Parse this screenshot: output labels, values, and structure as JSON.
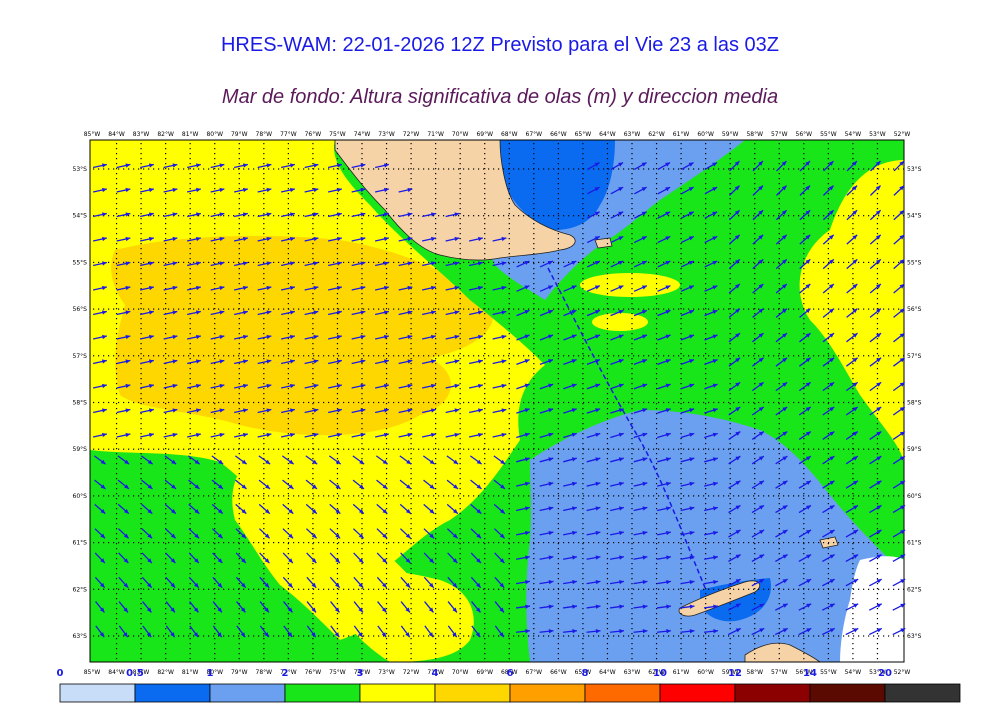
{
  "title": "HRES-WAM: 22-01-2026 12Z Previsto para el Vie 23 a las 03Z",
  "subtitle": "Mar de fondo: Altura significativa de olas (m) y direccion media",
  "map": {
    "lon_labels": [
      "85°W",
      "84°W",
      "83°W",
      "82°W",
      "81°W",
      "80°W",
      "79°W",
      "78°W",
      "77°W",
      "76°W",
      "75°W",
      "74°W",
      "73°W",
      "72°W",
      "71°W",
      "70°W",
      "69°W",
      "68°W",
      "67°W",
      "66°W",
      "65°W",
      "64°W",
      "63°W",
      "62°W",
      "61°W",
      "60°W",
      "59°W",
      "58°W",
      "57°W",
      "56°W",
      "55°W",
      "54°W",
      "53°W",
      "52°W"
    ],
    "lat_labels": [
      "53°S",
      "54°S",
      "55°S",
      "56°S",
      "57°S",
      "58°S",
      "59°S",
      "60°S",
      "61°S",
      "62°S",
      "63°S"
    ],
    "colors": {
      "land": "#f5d3a6",
      "ice_white": "#ffffff",
      "arrow": "#1a1ae6",
      "track": "#1a1ae6"
    }
  },
  "colorbar": {
    "ticks": [
      "0",
      "0.5",
      "1",
      "2",
      "3",
      "4",
      "6",
      "8",
      "10",
      "12",
      "14",
      "20"
    ],
    "colors": [
      "#c8ddf7",
      "#0a6bf0",
      "#6b9ff0",
      "#19e619",
      "#ffff00",
      "#ffd700",
      "#ffa000",
      "#ff6a00",
      "#ff0000",
      "#8b0000",
      "#5a0a00",
      "#333333"
    ]
  }
}
